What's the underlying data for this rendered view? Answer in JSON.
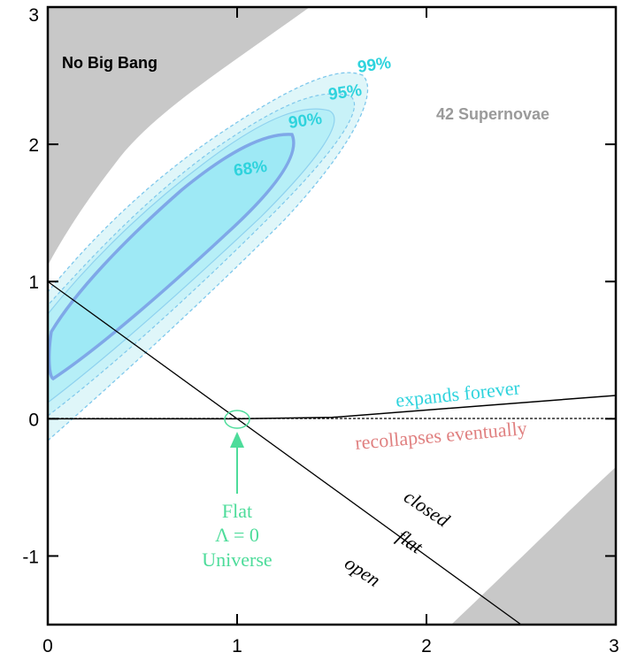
{
  "chart_data": {
    "type": "contour",
    "x_ticks": [
      0,
      1,
      2,
      3
    ],
    "y_ticks": [
      3,
      2,
      1,
      0,
      -1
    ],
    "xlim": [
      0,
      3
    ],
    "ylim": [
      -1.5,
      3
    ],
    "annotations": {
      "no_big_bang": "No Big Bang",
      "supernovae": "42 Supernovae",
      "expands": "expands forever",
      "recollapses": "recollapses eventually",
      "closed": "closed",
      "flat": "flat",
      "open": "open",
      "flat_universe": [
        "Flat",
        "Λ = 0",
        "Universe"
      ]
    },
    "confidence_levels": [
      {
        "label": "99%",
        "color": "#2fd3dd"
      },
      {
        "label": "95%",
        "color": "#2fd3dd"
      },
      {
        "label": "90%",
        "color": "#2fd3dd"
      },
      {
        "label": "68%",
        "color": "#2fd3dd"
      }
    ],
    "lines": [
      {
        "name": "flat",
        "points": [
          [
            0,
            1
          ],
          [
            2.5,
            -1.5
          ]
        ]
      },
      {
        "name": "expansion_boundary",
        "points": [
          [
            0,
            0
          ],
          [
            1,
            0
          ],
          [
            1.5,
            0.01
          ],
          [
            3,
            0.17
          ]
        ]
      }
    ],
    "colors": {
      "grey_region": "#c8c8c8",
      "contour_fill_outer": "#dff6f9",
      "contour_fill_mid": "#c3f0f6",
      "contour_fill_inner": "#aaeef6",
      "contour_line": "#6fb4e6",
      "contour_line_inner": "#7fa8e8",
      "expands_text": "#2fd3dd",
      "recollapses_text": "#e08080",
      "flat_universe": "#4ddc9a"
    }
  }
}
